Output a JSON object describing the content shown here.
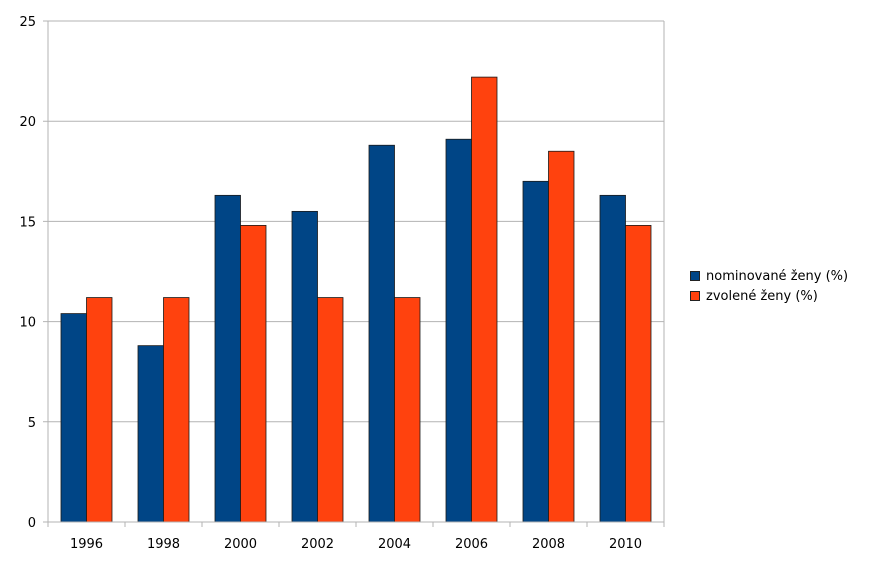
{
  "chart_data": {
    "type": "bar",
    "title": "",
    "xlabel": "",
    "ylabel": "",
    "categories": [
      "1996",
      "1998",
      "2000",
      "2002",
      "2004",
      "2006",
      "2008",
      "2010"
    ],
    "series": [
      {
        "name": "nominované ženy (%)",
        "color": "#004586",
        "values": [
          10.4,
          8.8,
          16.3,
          15.5,
          18.8,
          19.1,
          17.0,
          16.3
        ]
      },
      {
        "name": "zvolené ženy (%)",
        "color": "#ff420e",
        "values": [
          11.2,
          11.2,
          14.8,
          11.2,
          11.2,
          22.2,
          18.5,
          14.8
        ]
      }
    ],
    "ylim": [
      0,
      25
    ],
    "yticks": [
      0,
      5,
      10,
      15,
      20,
      25
    ],
    "grid": true,
    "legend_position": "right"
  }
}
